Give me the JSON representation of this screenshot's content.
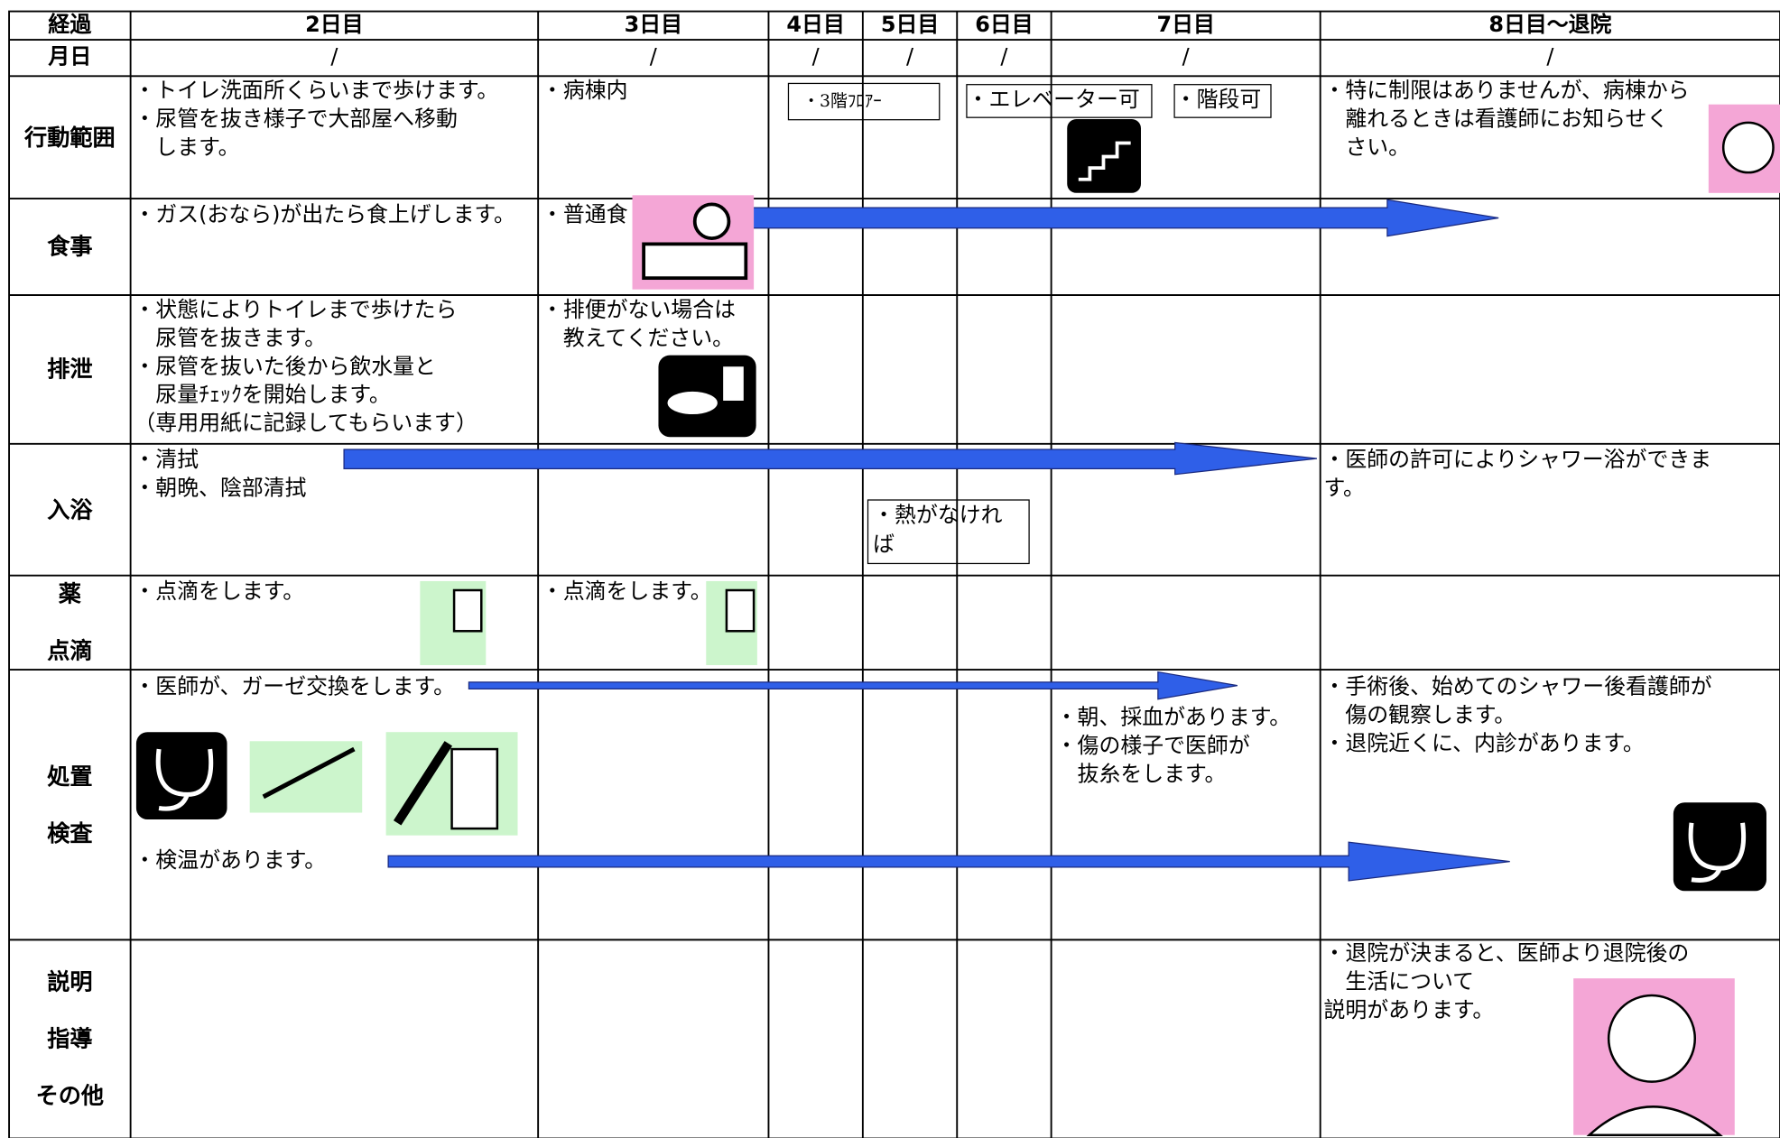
{
  "header": [
    "経過",
    "2日目",
    "3日目",
    "4日目",
    "5日目",
    "6日目",
    "7日目",
    "8日目～退院"
  ],
  "dates": [
    "月日",
    "/",
    "/",
    "/",
    "/",
    "/",
    "/",
    "/"
  ],
  "rows": [
    {
      "label": "行動範囲",
      "notes": [
        "・トイレ洗面所くらいまで歩けます。\n・尿管を抜き様子で大部屋へ移動\n　します。",
        "・病棟内",
        "・3階ﾌﾛｱｰ",
        "・エレベーター可",
        "・階段可",
        "・特に制限はありませんが、病棟から\n　離れるときは看護師にお知らせく\n　さい。"
      ]
    },
    {
      "label": "食事",
      "notes": [
        "・ガス(おなら)が出たら食上げします。",
        "・普通食"
      ]
    },
    {
      "label": "排泄",
      "notes": [
        "・状態によりトイレまで歩けたら\n　尿管を抜きます。\n・尿管を抜いた後から飲水量と\n　尿量ﾁｪｯｸを開始します。\n（専用用紙に記録してもらいます）",
        "・排便がない場合は\n　教えてください。"
      ]
    },
    {
      "label": "入浴",
      "notes": [
        "・清拭\n・朝晩、陰部清拭",
        "・熱がなけれ\nば",
        "・医師の許可によりシャワー浴ができま\nす。"
      ]
    },
    {
      "label": "薬\n\n点滴",
      "notes": [
        "・点滴をします。",
        "・点滴をします。"
      ]
    },
    {
      "label": "処置\n\n検査",
      "notes": [
        "・医師が、ガーゼ交換をします。",
        "・検温があります。",
        "・朝、採血があります。\n・傷の様子で医師が\n　抜糸をします。",
        "・手術後、始めてのシャワー後看護師が\n　傷の観察します。\n・退院近くに、内診があります。"
      ]
    },
    {
      "label": "説明\n\n指導\n\nその他",
      "notes": [
        "・退院が決まると、医師より退院後の\n　生活について\n説明があります。"
      ]
    }
  ]
}
